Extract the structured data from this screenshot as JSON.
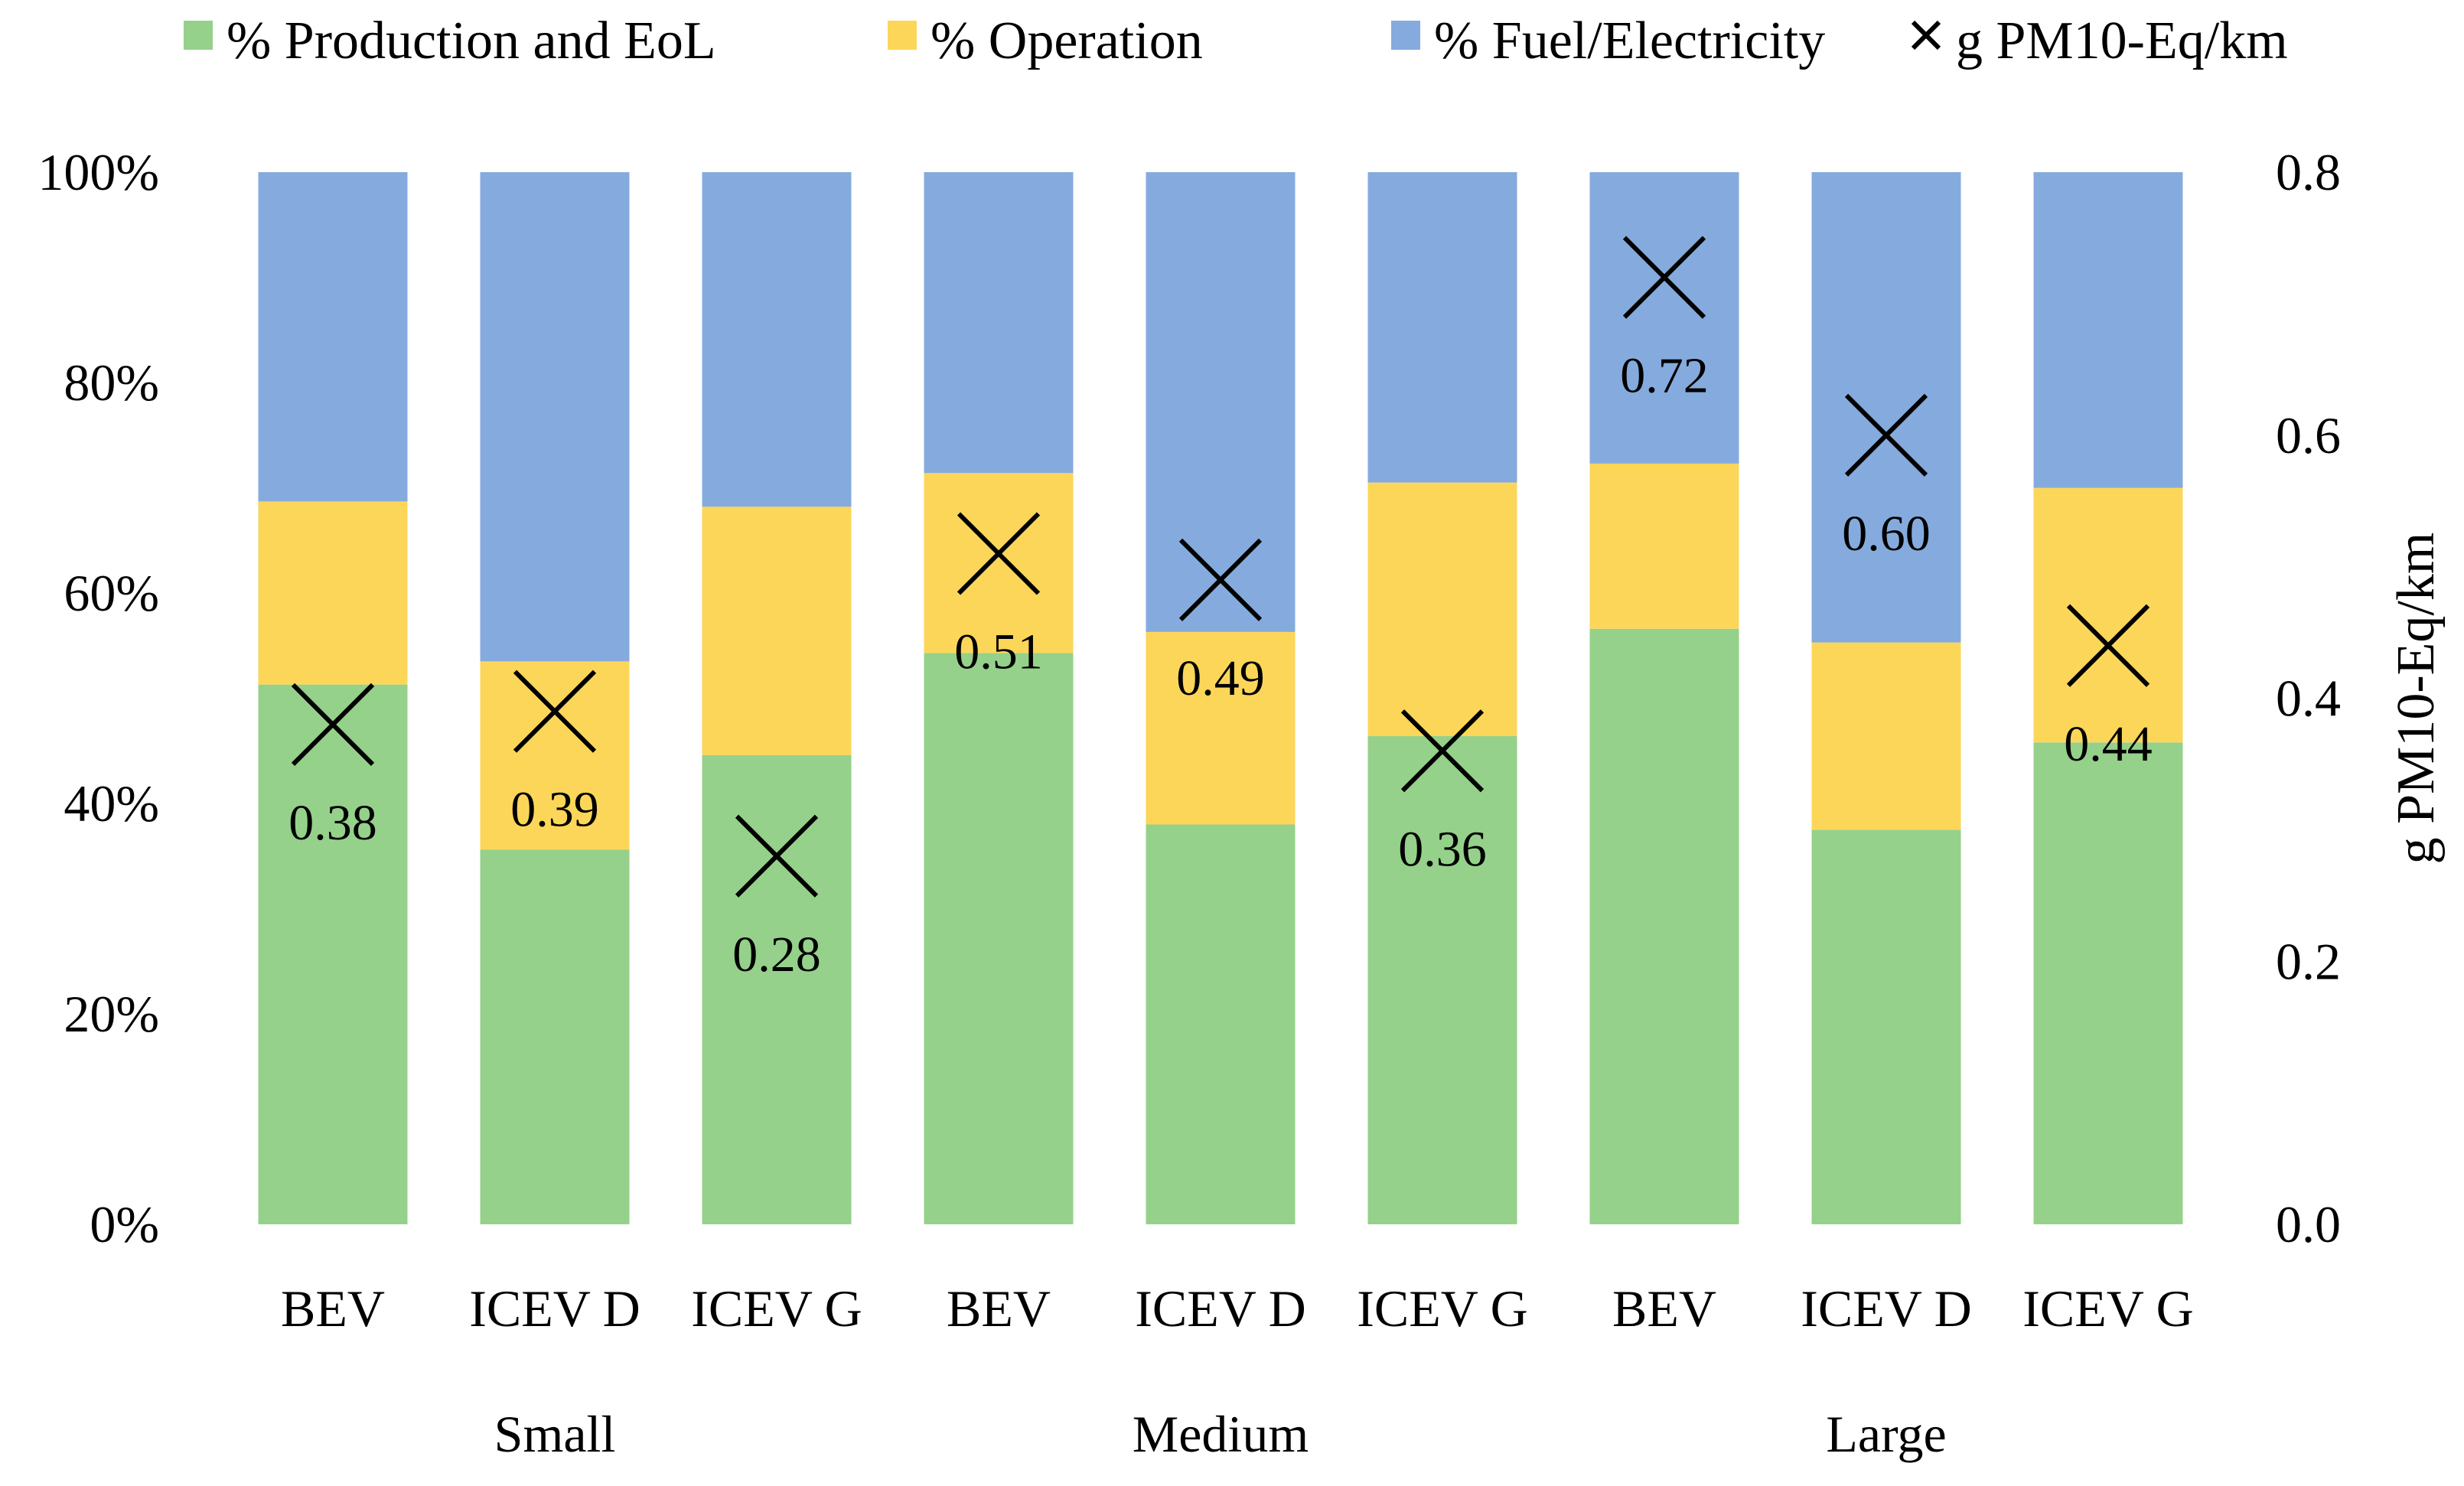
{
  "chart_data": {
    "type": "bar",
    "stacked": true,
    "categories": [
      {
        "group": "Small",
        "label": "BEV"
      },
      {
        "group": "Small",
        "label": "ICEV D"
      },
      {
        "group": "Small",
        "label": "ICEV G"
      },
      {
        "group": "Medium",
        "label": "BEV"
      },
      {
        "group": "Medium",
        "label": "ICEV D"
      },
      {
        "group": "Medium",
        "label": "ICEV G"
      },
      {
        "group": "Large",
        "label": "BEV"
      },
      {
        "group": "Large",
        "label": "ICEV D"
      },
      {
        "group": "Large",
        "label": "ICEV G"
      }
    ],
    "groups": [
      "Small",
      "Medium",
      "Large"
    ],
    "series": [
      {
        "name": "% Production and EoL",
        "color": "#95D18A",
        "values": [
          51.3,
          35.6,
          44.6,
          54.3,
          38.0,
          46.4,
          56.6,
          37.5,
          45.8
        ]
      },
      {
        "name": "% Operation",
        "color": "#FCD659",
        "values": [
          17.4,
          17.9,
          23.6,
          17.1,
          18.3,
          24.1,
          15.7,
          17.8,
          24.2
        ]
      },
      {
        "name": "% Fuel/Electricity",
        "color": "#85ABDE",
        "values": [
          31.3,
          46.5,
          31.8,
          28.6,
          43.7,
          29.5,
          27.7,
          44.7,
          30.0
        ]
      }
    ],
    "secondary_series": {
      "name": "g PM10-Eq/km",
      "marker": "x",
      "values": [
        0.38,
        0.39,
        0.28,
        0.51,
        0.49,
        0.36,
        0.72,
        0.6,
        0.44
      ],
      "labels": [
        "0.38",
        "0.39",
        "0.28",
        "0.51",
        "0.49",
        "0.36",
        "0.72",
        "0.60",
        "0.44"
      ]
    },
    "y_left": {
      "min": 0,
      "max": 100,
      "ticks": [
        "0%",
        "20%",
        "40%",
        "60%",
        "80%",
        "100%"
      ]
    },
    "y_right": {
      "min": 0,
      "max": 0.8,
      "ticks": [
        "0.0",
        "0.2",
        "0.4",
        "0.6",
        "0.8"
      ],
      "label": "g PM10-Eq/km"
    },
    "legend_position": "top",
    "grid": false
  }
}
